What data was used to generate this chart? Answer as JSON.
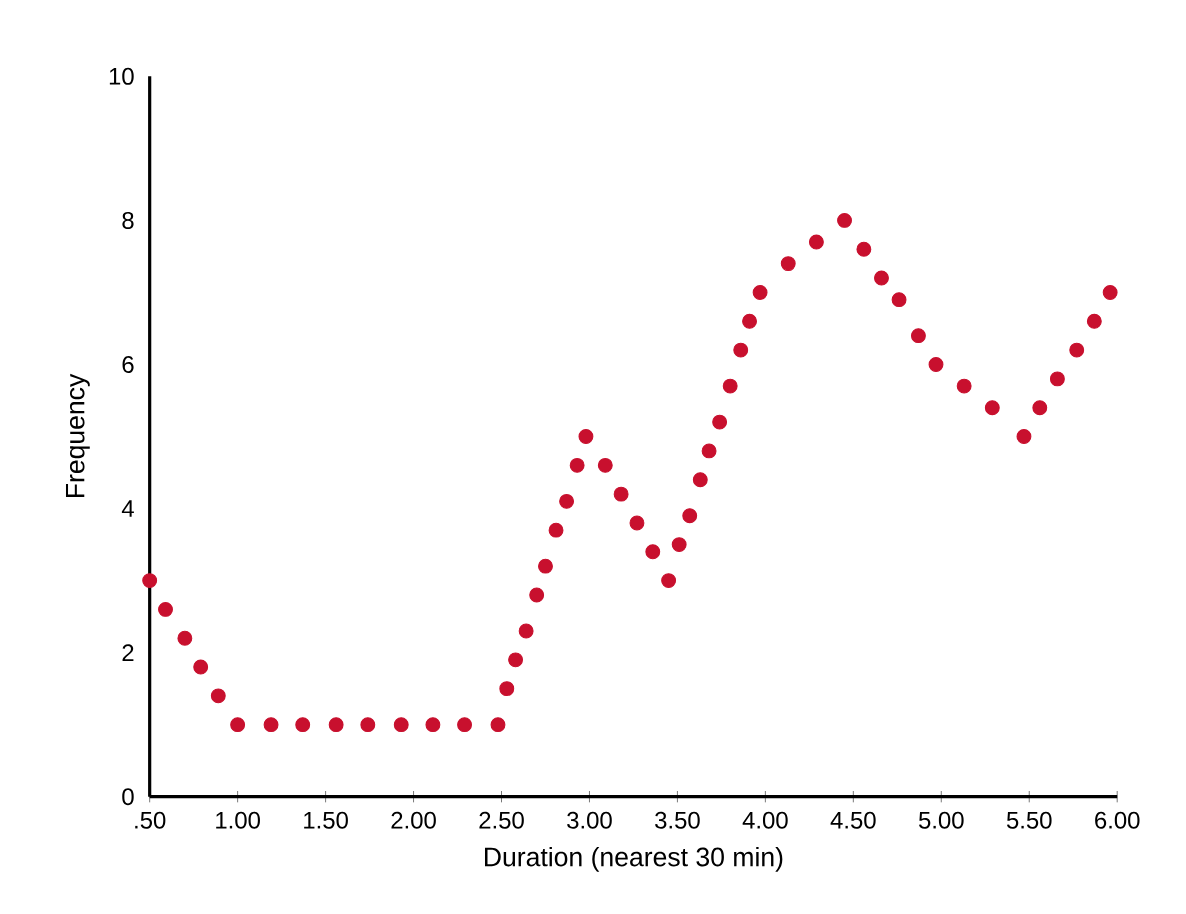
{
  "chart_data": {
    "type": "scatter",
    "xlabel": "Duration (nearest 30 min)",
    "ylabel": "Frequency",
    "x": [
      0.5,
      0.59,
      0.7,
      0.79,
      0.89,
      1.0,
      1.19,
      1.37,
      1.56,
      1.74,
      1.93,
      2.11,
      2.29,
      2.48,
      2.53,
      2.58,
      2.64,
      2.7,
      2.75,
      2.81,
      2.87,
      2.93,
      2.98,
      3.09,
      3.18,
      3.27,
      3.36,
      3.45,
      3.51,
      3.57,
      3.63,
      3.68,
      3.74,
      3.8,
      3.86,
      3.91,
      3.97,
      4.13,
      4.29,
      4.45,
      4.56,
      4.66,
      4.76,
      4.87,
      4.97,
      5.13,
      5.29,
      5.47,
      5.56,
      5.66,
      5.77,
      5.87,
      5.96
    ],
    "values": [
      3.0,
      2.6,
      2.2,
      1.8,
      1.4,
      1.0,
      1.0,
      1.0,
      1.0,
      1.0,
      1.0,
      1.0,
      1.0,
      1.0,
      1.5,
      1.9,
      2.3,
      2.8,
      3.2,
      3.7,
      4.1,
      4.6,
      5.0,
      4.6,
      4.2,
      3.8,
      3.4,
      3.0,
      3.5,
      3.9,
      4.4,
      4.8,
      5.2,
      5.7,
      6.2,
      6.6,
      7.0,
      7.4,
      7.7,
      8.0,
      7.6,
      7.2,
      6.9,
      6.4,
      6.0,
      5.7,
      5.4,
      5.0,
      5.4,
      5.8,
      6.2,
      6.6,
      7.0
    ],
    "color": "#c8102e",
    "xlim": [
      0.5,
      6.0
    ],
    "ylim": [
      0,
      10
    ],
    "xticks": [
      {
        "value": 0.5,
        "label": ".50"
      },
      {
        "value": 1.0,
        "label": "1.00"
      },
      {
        "value": 1.5,
        "label": "1.50"
      },
      {
        "value": 2.0,
        "label": "2.00"
      },
      {
        "value": 2.5,
        "label": "2.50"
      },
      {
        "value": 3.0,
        "label": "3.00"
      },
      {
        "value": 3.5,
        "label": "3.50"
      },
      {
        "value": 4.0,
        "label": "4.00"
      },
      {
        "value": 4.5,
        "label": "4.50"
      },
      {
        "value": 5.0,
        "label": "5.00"
      },
      {
        "value": 5.5,
        "label": "5.50"
      },
      {
        "value": 6.0,
        "label": "6.00"
      }
    ],
    "yticks": [
      0,
      2,
      4,
      6,
      8,
      10
    ],
    "grid": false
  }
}
